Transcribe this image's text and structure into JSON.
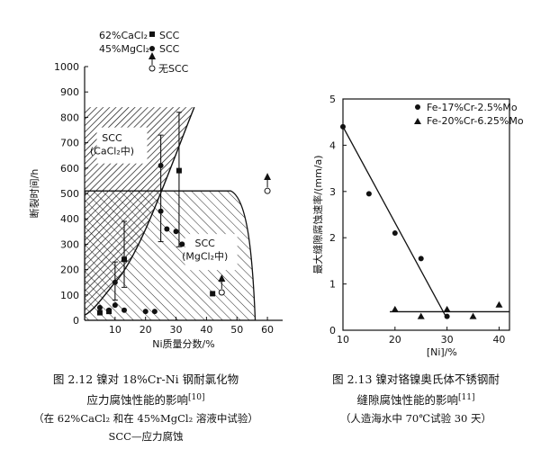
{
  "chart_data": [
    {
      "type": "scatter",
      "ylabel": "断裂时间/h",
      "xlabel": "Ni质量分数/%",
      "xlim": [
        0,
        65
      ],
      "ylim": [
        0,
        1000
      ],
      "xticks": [
        10,
        20,
        30,
        40,
        50,
        60
      ],
      "yticks": [
        100,
        200,
        300,
        400,
        500,
        600,
        700,
        800,
        900,
        1000
      ],
      "legend": [
        {
          "label": "62%CaCl₂",
          "value": "SCC",
          "marker": "filled-square"
        },
        {
          "label": "45%MgCl₂",
          "value": "SCC",
          "marker": "filled-circle"
        },
        {
          "label": "",
          "value": "无SCC",
          "marker": "open-circle-arrow"
        }
      ],
      "regions": [
        {
          "label": "SCC",
          "label2": "(CaCl₂中)",
          "hatch": "dense",
          "upper_h": 840
        },
        {
          "label": "SCC",
          "label2": "(MgCl₂中)",
          "hatch": "sparse",
          "upper_h": 510
        }
      ],
      "series": [
        {
          "marker": "filled-square",
          "points": [
            [
              5,
              30
            ],
            [
              8,
              35
            ],
            [
              13,
              240
            ],
            [
              31,
              590
            ],
            [
              42,
              105
            ]
          ]
        },
        {
          "marker": "filled-circle",
          "points": [
            [
              5,
              50
            ],
            [
              8,
              40
            ],
            [
              10,
              150
            ],
            [
              10,
              60
            ],
            [
              13,
              40
            ],
            [
              20,
              35
            ],
            [
              23,
              35
            ],
            [
              25,
              610
            ],
            [
              25,
              430
            ],
            [
              27,
              360
            ],
            [
              30,
              350
            ],
            [
              32,
              300
            ]
          ]
        },
        {
          "marker": "open-circle",
          "points": [
            [
              45,
              110
            ],
            [
              60,
              510
            ]
          ]
        }
      ],
      "error_bars": [
        [
          10,
          80,
          230
        ],
        [
          13,
          130,
          390
        ],
        [
          25,
          310,
          730
        ],
        [
          31,
          290,
          820
        ]
      ]
    },
    {
      "type": "scatter",
      "ylabel": "最大缝隙腐蚀速率/(mm/a)",
      "xlabel": "[Ni]/%",
      "xlim": [
        10,
        42
      ],
      "ylim": [
        0,
        5
      ],
      "xticks": [
        10,
        20,
        30,
        40
      ],
      "yticks": [
        0,
        1,
        2,
        3,
        4,
        5
      ],
      "legend": [
        {
          "label": "Fe-17%Cr-2.5%Mo",
          "marker": "circle"
        },
        {
          "label": "Fe-20%Cr-6.25%Mo",
          "marker": "triangle"
        }
      ],
      "series": [
        {
          "name": "Fe-17%Cr-2.5%Mo",
          "marker": "circle",
          "points": [
            [
              10,
              4.4
            ],
            [
              15,
              2.95
            ],
            [
              20,
              2.1
            ],
            [
              25,
              1.55
            ],
            [
              30,
              0.3
            ]
          ]
        },
        {
          "name": "Fe-20%Cr-6.25%Mo",
          "marker": "triangle",
          "points": [
            [
              20,
              0.45
            ],
            [
              25,
              0.3
            ],
            [
              30,
              0.45
            ],
            [
              35,
              0.3
            ],
            [
              40,
              0.55
            ]
          ]
        }
      ],
      "fit_lines": [
        [
          [
            10,
            4.4
          ],
          [
            30,
            0.25
          ]
        ],
        [
          [
            19,
            0.4
          ],
          [
            42,
            0.4
          ]
        ]
      ]
    }
  ],
  "captions": {
    "left": {
      "line1": "图 2.12  镍对 18%Cr-Ni 钢耐氯化物",
      "line2": "应力腐蚀性能的影响",
      "line2_ref": "[10]",
      "line3": "（在 62%CaCl₂ 和在 45%MgCl₂ 溶液中试验）",
      "line4": "SCC—应力腐蚀"
    },
    "right": {
      "line1": "图 2.13  镍对铬镍奥氏体不锈钢耐",
      "line2": "缝隙腐蚀性能的影响",
      "line2_ref": "[11]",
      "line3": "（人造海水中 70℃试验 30 天）"
    }
  }
}
